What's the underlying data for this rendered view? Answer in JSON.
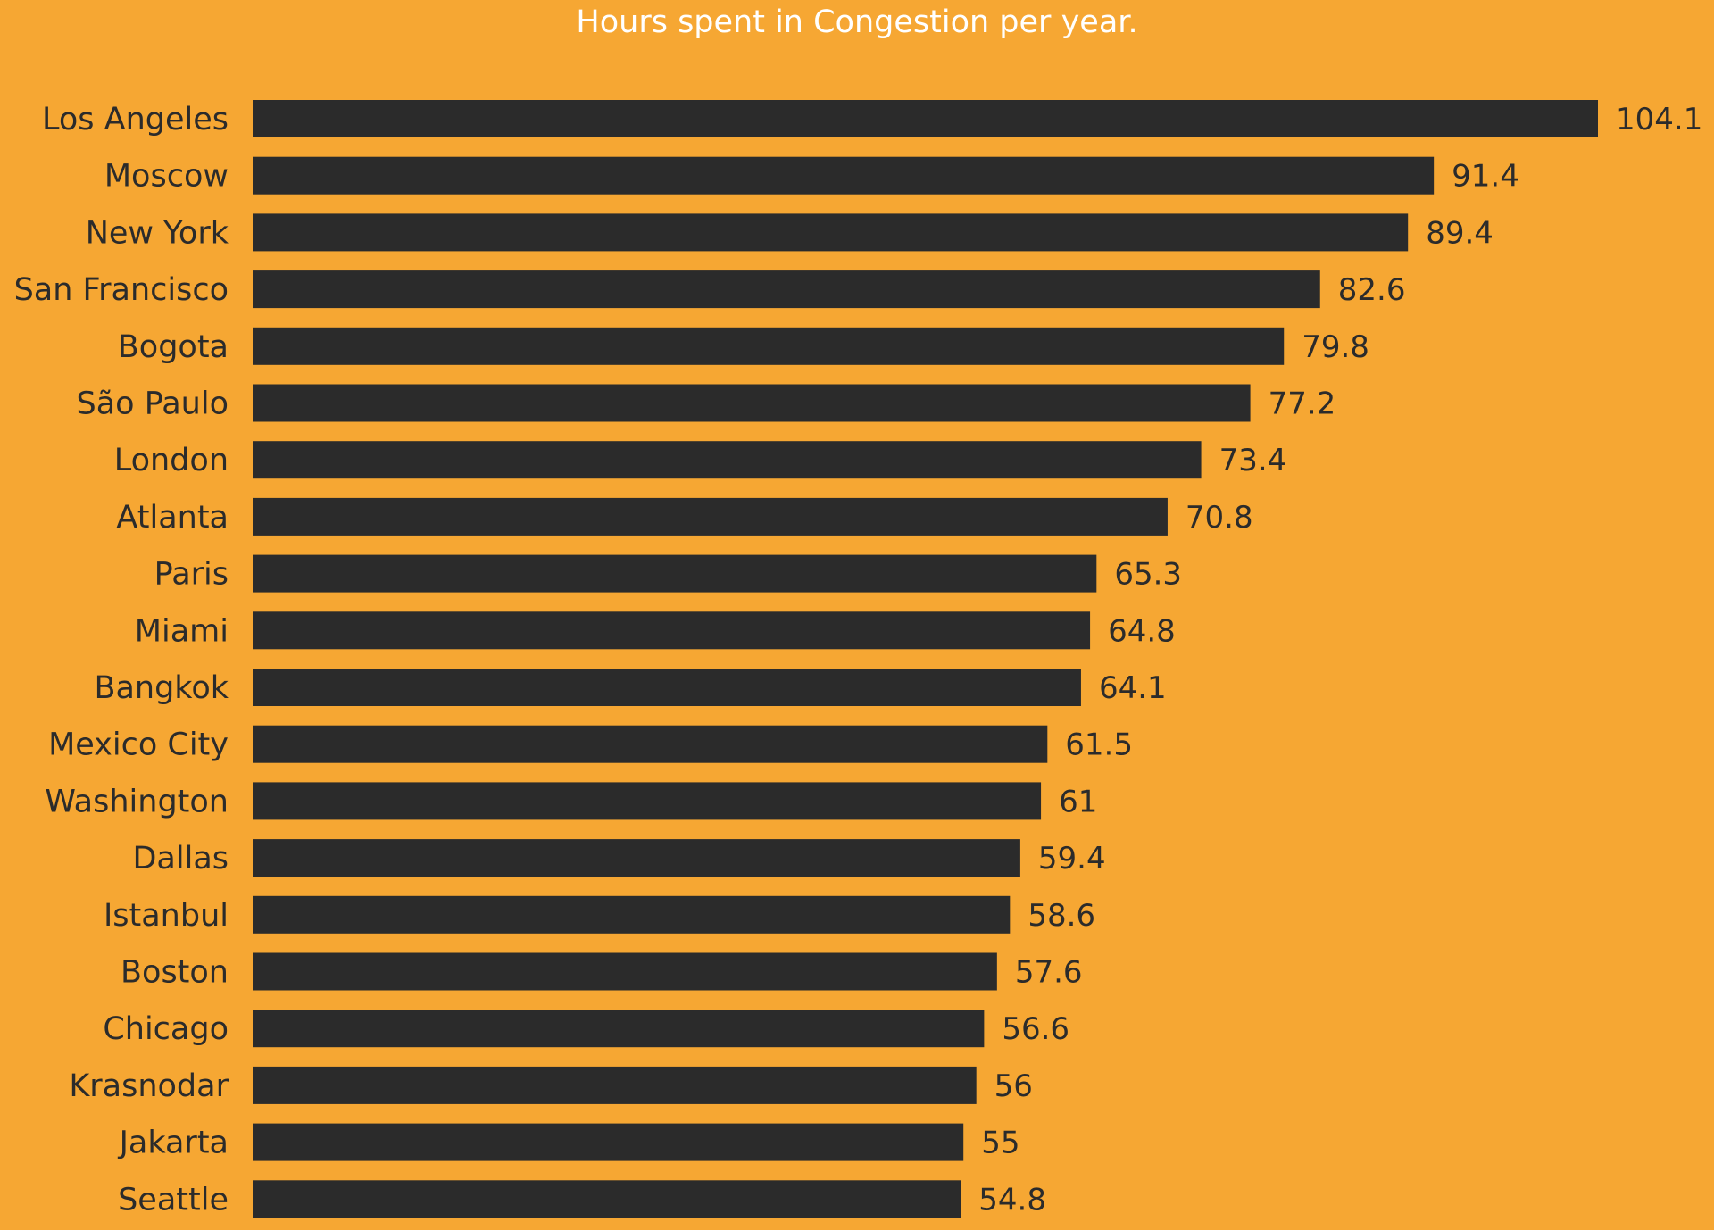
{
  "chart_data": {
    "type": "bar",
    "orientation": "horizontal",
    "title": "Hours spent in Congestion per year.",
    "xlabel": "",
    "ylabel": "",
    "grid": false,
    "legend": "none",
    "xlim": [
      0,
      104.1
    ],
    "categories": [
      "Los Angeles",
      "Moscow",
      "New York",
      "San Francisco",
      "Bogota",
      "São Paulo",
      "London",
      "Atlanta",
      "Paris",
      "Miami",
      "Bangkok",
      "Mexico City",
      "Washington",
      "Dallas",
      "Istanbul",
      "Boston",
      "Chicago",
      "Krasnodar",
      "Jakarta",
      "Seattle"
    ],
    "values": [
      104.1,
      91.4,
      89.4,
      82.6,
      79.8,
      77.2,
      73.4,
      70.8,
      65.3,
      64.8,
      64.1,
      61.5,
      61,
      59.4,
      58.6,
      57.6,
      56.6,
      56,
      55,
      54.8
    ],
    "value_labels": [
      "104.1",
      "91.4",
      "89.4",
      "82.6",
      "79.8",
      "77.2",
      "73.4",
      "70.8",
      "65.3",
      "64.8",
      "64.1",
      "61.5",
      "61",
      "59.4",
      "58.6",
      "57.6",
      "56.6",
      "56",
      "55",
      "54.8"
    ]
  },
  "colors": {
    "background": "#F6A733",
    "bar": "#2B2B2B",
    "title": "#FFFFFF",
    "text": "#2B2B2B"
  }
}
